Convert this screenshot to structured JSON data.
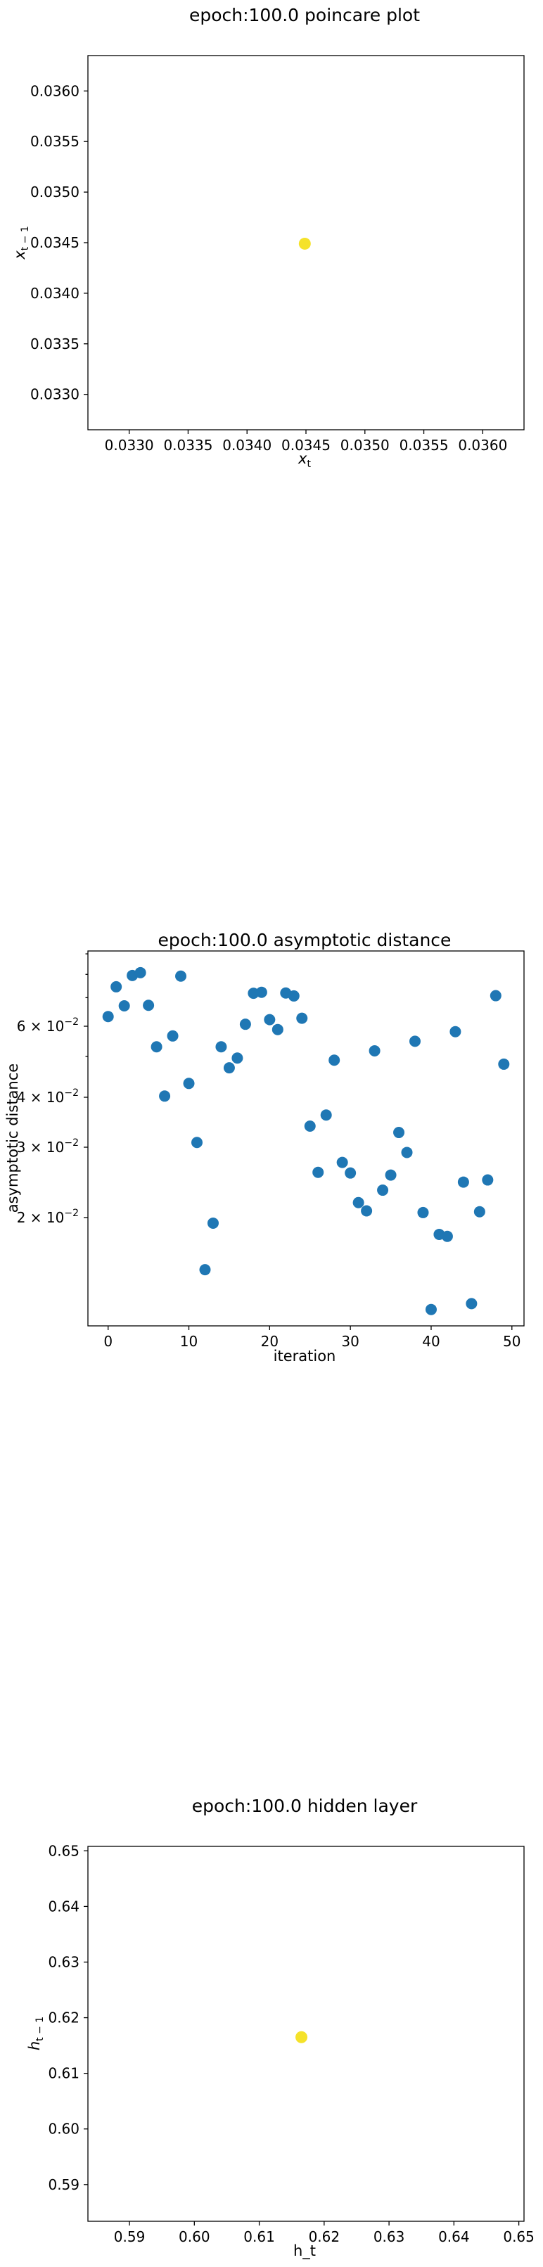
{
  "chart_data": [
    {
      "type": "scatter",
      "title": "epoch:100.0 poincare plot",
      "xlabel": "x_t",
      "ylabel": "x_{t-1}",
      "xlim": [
        0.03265,
        0.03635
      ],
      "ylim": [
        0.03265,
        0.03635
      ],
      "xticks": [
        "0.0330",
        "0.0335",
        "0.0340",
        "0.0345",
        "0.0350",
        "0.0355",
        "0.0360"
      ],
      "yticks": [
        "0.0330",
        "0.0335",
        "0.0340",
        "0.0345",
        "0.0350",
        "0.0355",
        "0.0360"
      ],
      "tick_values": [
        0.033,
        0.0335,
        0.034,
        0.0345,
        0.035,
        0.0355,
        0.036
      ],
      "point_color": "#f5e22a",
      "points": [
        {
          "x": 0.03449,
          "y": 0.03449
        }
      ],
      "grid": false
    },
    {
      "type": "scatter",
      "title": "epoch:100.0 asymptotic distance",
      "xlabel": "iteration",
      "ylabel": "asymptotic distance",
      "xlim": [
        -2.5,
        51.5
      ],
      "ylim": [
        0.01065,
        0.0915
      ],
      "yscale": "log",
      "xticks": [
        "0",
        "10",
        "20",
        "30",
        "40",
        "50"
      ],
      "xtick_values": [
        0,
        10,
        20,
        30,
        40,
        50
      ],
      "yticks_major": [
        "2 × 10^-2",
        "3 × 10^-2",
        "4 × 10^-2",
        "6 × 10^-2"
      ],
      "ytick_values": [
        0.02,
        0.03,
        0.04,
        0.06
      ],
      "point_color": "#1f77b4",
      "x": [
        0,
        1,
        2,
        3,
        4,
        5,
        6,
        7,
        8,
        9,
        10,
        11,
        12,
        13,
        14,
        15,
        16,
        17,
        18,
        19,
        20,
        21,
        22,
        23,
        24,
        25,
        26,
        27,
        28,
        29,
        30,
        31,
        32,
        33,
        34,
        35,
        36,
        37,
        38,
        39,
        40,
        41,
        42,
        43,
        44,
        45,
        46,
        47,
        48,
        49
      ],
      "y": [
        0.0628,
        0.0745,
        0.0668,
        0.0795,
        0.0808,
        0.067,
        0.0528,
        0.0398,
        0.0562,
        0.0792,
        0.0428,
        0.0305,
        0.0147,
        0.0192,
        0.0528,
        0.0468,
        0.0495,
        0.0601,
        0.0718,
        0.0722,
        0.0617,
        0.0583,
        0.0719,
        0.0707,
        0.0622,
        0.0335,
        0.0257,
        0.0357,
        0.0489,
        0.0272,
        0.0256,
        0.0216,
        0.0206,
        0.0516,
        0.0232,
        0.0253,
        0.0323,
        0.0288,
        0.0545,
        0.0204,
        0.0117,
        0.018,
        0.0178,
        0.0576,
        0.0243,
        0.0121,
        0.0205,
        0.0246,
        0.0708,
        0.0478
      ],
      "grid": false
    },
    {
      "type": "scatter",
      "title": "epoch:100.0 hidden layer",
      "xlabel": "h_t",
      "ylabel": "h_{t-1}",
      "xlim": [
        0.5836,
        0.6508
      ],
      "ylim": [
        0.5834,
        0.6508
      ],
      "xticks": [
        "0.59",
        "0.60",
        "0.61",
        "0.62",
        "0.63",
        "0.64",
        "0.65"
      ],
      "yticks": [
        "0.59",
        "0.60",
        "0.61",
        "0.62",
        "0.63",
        "0.64",
        "0.65"
      ],
      "tick_values": [
        0.59,
        0.6,
        0.61,
        0.62,
        0.63,
        0.64,
        0.65
      ],
      "point_color": "#f5e22a",
      "points": [
        {
          "x": 0.6165,
          "y": 0.6165
        }
      ],
      "grid": false
    }
  ]
}
